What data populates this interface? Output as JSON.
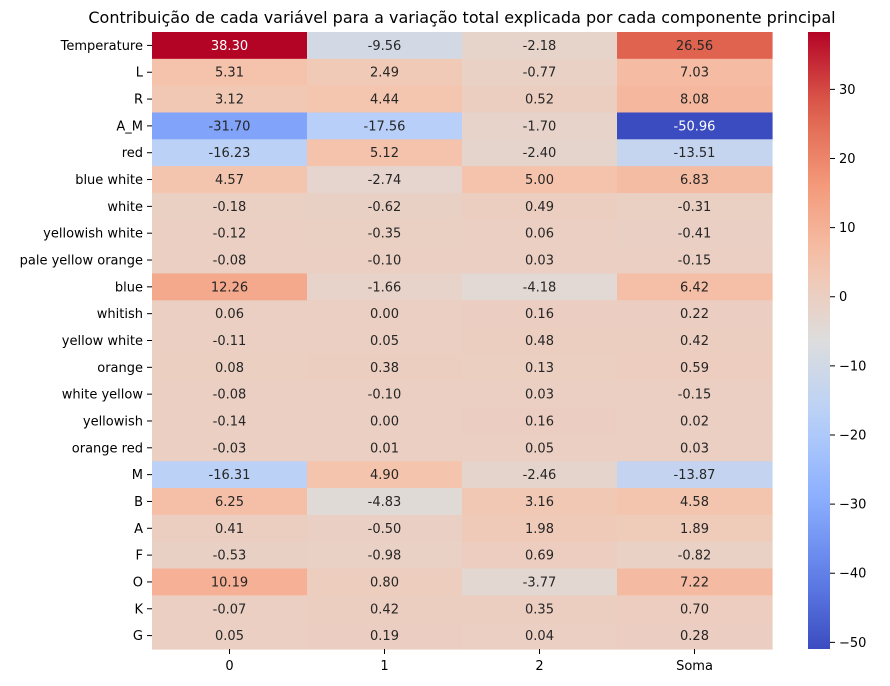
{
  "chart_data": {
    "type": "heatmap",
    "title": "Contribuição de cada variável para a variação total explicada por cada componente principal",
    "xlabel": "",
    "ylabel": "",
    "columns": [
      "0",
      "1",
      "2",
      "Soma"
    ],
    "rows": [
      "Temperature",
      "L",
      "R",
      "A_M",
      "red",
      "blue white",
      "white",
      "yellowish white",
      "pale yellow orange",
      "blue",
      "whitish",
      "yellow white",
      "orange",
      "white yellow",
      "yellowish",
      "orange red",
      "M",
      "B",
      "A",
      "F",
      "O",
      "K",
      "G"
    ],
    "values": [
      [
        38.3,
        -9.56,
        -2.18,
        26.56
      ],
      [
        5.31,
        2.49,
        -0.77,
        7.03
      ],
      [
        3.12,
        4.44,
        0.52,
        8.08
      ],
      [
        -31.7,
        -17.56,
        -1.7,
        -50.96
      ],
      [
        -16.23,
        5.12,
        -2.4,
        -13.51
      ],
      [
        4.57,
        -2.74,
        5.0,
        6.83
      ],
      [
        -0.18,
        -0.62,
        0.49,
        -0.31
      ],
      [
        -0.12,
        -0.35,
        0.06,
        -0.41
      ],
      [
        -0.08,
        -0.1,
        0.03,
        -0.15
      ],
      [
        12.26,
        -1.66,
        -4.18,
        6.42
      ],
      [
        0.06,
        0.0,
        0.16,
        0.22
      ],
      [
        -0.11,
        0.05,
        0.48,
        0.42
      ],
      [
        0.08,
        0.38,
        0.13,
        0.59
      ],
      [
        -0.08,
        -0.1,
        0.03,
        -0.15
      ],
      [
        -0.14,
        0.0,
        0.16,
        0.02
      ],
      [
        -0.03,
        0.01,
        0.05,
        0.03
      ],
      [
        -16.31,
        4.9,
        -2.46,
        -13.87
      ],
      [
        6.25,
        -4.83,
        3.16,
        4.58
      ],
      [
        0.41,
        -0.5,
        1.98,
        1.89
      ],
      [
        -0.53,
        -0.98,
        0.69,
        -0.82
      ],
      [
        10.19,
        0.8,
        -3.77,
        7.22
      ],
      [
        -0.07,
        0.42,
        0.35,
        0.7
      ],
      [
        0.05,
        0.19,
        0.04,
        0.28
      ]
    ],
    "value_format": "0.00",
    "colormap": "coolwarm",
    "vmin": -50.96,
    "vmax": 38.3,
    "colorbar_ticks": [
      30,
      20,
      10,
      0,
      -10,
      -20,
      -30,
      -40,
      -50
    ],
    "colorbar_tick_labels": [
      "30",
      "20",
      "10",
      "0",
      "−10",
      "−20",
      "−30",
      "−40",
      "−50"
    ],
    "grid": false,
    "colorbar": "right"
  }
}
